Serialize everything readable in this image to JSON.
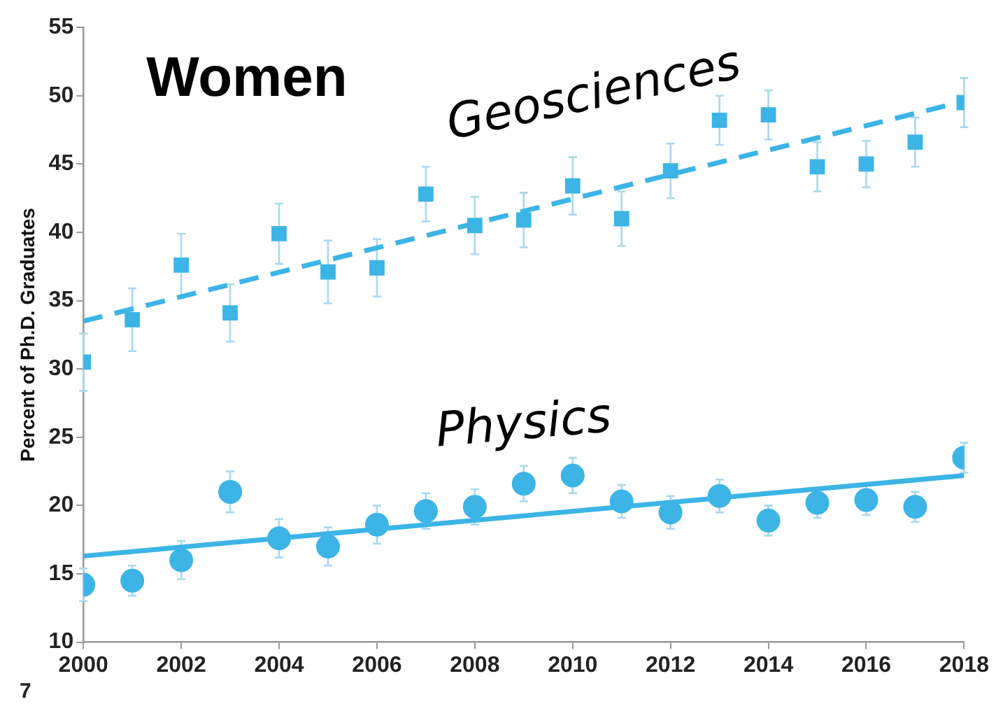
{
  "chart_data": {
    "type": "scatter",
    "title": "Women",
    "ylabel": "Percent of Ph.D. Graduates",
    "xlim": [
      2000,
      2018
    ],
    "xticks": [
      2000,
      2002,
      2004,
      2006,
      2008,
      2010,
      2012,
      2014,
      2016,
      2018
    ],
    "ylim": [
      10,
      55
    ],
    "yticks": [
      10,
      15,
      20,
      25,
      30,
      35,
      40,
      45,
      50,
      55
    ],
    "grid": false,
    "legend": false,
    "annotations": [
      "7"
    ],
    "series": [
      {
        "name": "Geosciences",
        "type": "scatter",
        "marker": "square",
        "color": "#3cb4e6",
        "x": [
          2000,
          2001,
          2002,
          2003,
          2004,
          2005,
          2006,
          2007,
          2008,
          2009,
          2010,
          2011,
          2012,
          2013,
          2014,
          2015,
          2016,
          2017,
          2018
        ],
        "values": [
          30.5,
          33.6,
          37.6,
          34.1,
          39.9,
          37.1,
          37.4,
          42.8,
          40.5,
          40.9,
          43.4,
          41.0,
          44.5,
          48.2,
          48.6,
          44.8,
          45.0,
          46.6,
          49.5
        ],
        "errors": [
          2.1,
          2.3,
          2.3,
          2.1,
          2.2,
          2.3,
          2.1,
          2.0,
          2.1,
          2.0,
          2.1,
          2.0,
          2.0,
          1.8,
          1.8,
          1.8,
          1.7,
          1.8,
          1.8
        ]
      },
      {
        "type": "line",
        "marker": "none",
        "line_style": "dashed",
        "color": "#3cb4e6",
        "x": [
          2000,
          2018
        ],
        "values": [
          33.5,
          49.6
        ]
      },
      {
        "name": "Physics",
        "type": "scatter",
        "marker": "circle",
        "color": "#3cb4e6",
        "x": [
          2000,
          2001,
          2002,
          2003,
          2004,
          2005,
          2006,
          2007,
          2008,
          2009,
          2010,
          2011,
          2012,
          2013,
          2014,
          2015,
          2016,
          2017,
          2018
        ],
        "values": [
          14.2,
          14.5,
          16.0,
          21.0,
          17.6,
          17.0,
          18.6,
          19.6,
          19.9,
          21.6,
          22.2,
          20.3,
          19.5,
          20.7,
          18.9,
          20.2,
          20.4,
          19.9,
          23.5
        ],
        "errors": [
          1.2,
          1.1,
          1.4,
          1.5,
          1.4,
          1.4,
          1.4,
          1.3,
          1.3,
          1.3,
          1.3,
          1.2,
          1.2,
          1.2,
          1.1,
          1.1,
          1.1,
          1.1,
          1.1
        ]
      },
      {
        "type": "line",
        "marker": "none",
        "line_style": "solid",
        "color": "#3cb4e6",
        "x": [
          2000,
          2018
        ],
        "values": [
          16.3,
          22.2
        ]
      }
    ]
  }
}
